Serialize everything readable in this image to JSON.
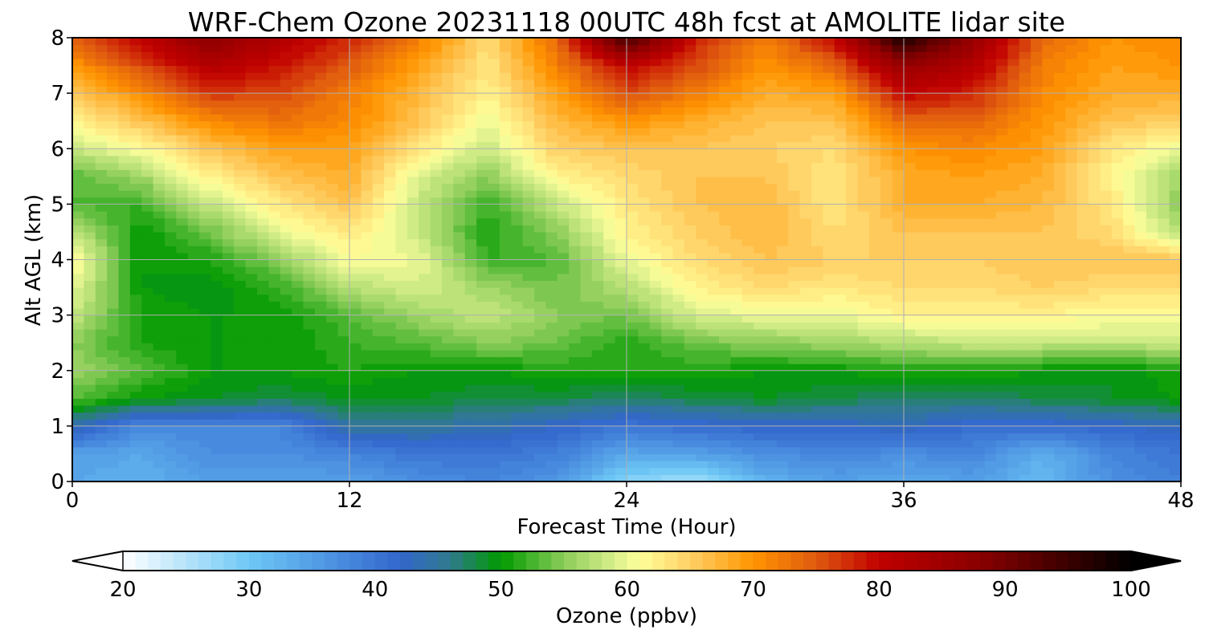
{
  "chart_data": {
    "type": "heatmap",
    "title": "WRF-Chem Ozone  20231118 00UTC 48h fcst at AMOLITE lidar site",
    "xlabel": "Forecast Time (Hour)",
    "ylabel": "Alt AGL (km)",
    "xlim": [
      0,
      48
    ],
    "ylim": [
      0,
      8
    ],
    "x_ticks": [
      "0",
      "12",
      "24",
      "36",
      "48"
    ],
    "y_ticks": [
      "0",
      "1",
      "2",
      "3",
      "4",
      "5",
      "6",
      "7",
      "8"
    ],
    "grid": true,
    "x": [
      0,
      3,
      6,
      9,
      12,
      15,
      18,
      21,
      24,
      27,
      30,
      33,
      36,
      39,
      42,
      45,
      48
    ],
    "y": [
      0,
      0.5,
      1,
      1.5,
      2,
      2.5,
      3,
      3.5,
      4,
      4.5,
      5,
      5.5,
      6,
      6.5,
      7,
      7.5,
      8
    ],
    "z": [
      [
        34,
        33,
        35,
        35,
        35,
        37,
        38,
        36,
        28,
        26,
        33,
        35,
        34,
        35,
        32,
        37,
        39
      ],
      [
        35,
        34,
        37,
        37,
        38,
        40,
        40,
        39,
        34,
        35,
        37,
        38,
        37,
        38,
        33,
        38,
        40
      ],
      [
        44,
        38,
        38,
        38,
        45,
        45,
        44,
        42,
        40,
        41,
        42,
        42,
        43,
        41,
        41,
        42,
        43
      ],
      [
        53,
        50,
        49,
        48,
        49,
        49,
        48,
        48,
        47,
        48,
        49,
        48,
        47,
        47,
        48,
        49,
        50
      ],
      [
        56,
        53,
        50,
        50,
        51,
        50,
        50,
        51,
        51,
        51,
        50,
        50,
        51,
        51,
        50,
        49,
        51
      ],
      [
        55,
        51,
        50,
        50,
        52,
        53,
        55,
        54,
        51,
        54,
        55,
        56,
        57,
        58,
        58,
        58,
        58
      ],
      [
        58,
        51,
        50,
        50,
        53,
        56,
        58,
        55,
        54,
        59,
        60,
        60,
        62,
        62,
        62,
        61,
        61
      ],
      [
        60,
        50,
        49,
        52,
        57,
        59,
        56,
        54,
        57,
        62,
        64,
        63,
        64,
        64,
        65,
        64,
        64
      ],
      [
        62,
        50,
        51,
        55,
        61,
        60,
        52,
        53,
        60,
        64,
        66,
        65,
        65,
        65,
        66,
        66,
        66
      ],
      [
        58,
        50,
        54,
        60,
        63,
        58,
        51,
        55,
        62,
        65,
        67,
        64,
        66,
        66,
        66,
        64,
        57
      ],
      [
        53,
        52,
        58,
        63,
        66,
        58,
        52,
        58,
        63,
        66,
        67,
        63,
        68,
        68,
        67,
        63,
        55
      ],
      [
        53,
        56,
        62,
        66,
        68,
        59,
        55,
        62,
        64,
        66,
        66,
        63,
        68,
        69,
        68,
        62,
        56
      ],
      [
        58,
        61,
        66,
        69,
        69,
        63,
        58,
        65,
        66,
        66,
        65,
        64,
        70,
        71,
        69,
        63,
        60
      ],
      [
        62,
        66,
        71,
        73,
        71,
        66,
        60,
        67,
        70,
        68,
        66,
        66,
        74,
        74,
        70,
        66,
        65
      ],
      [
        65,
        71,
        77,
        76,
        72,
        67,
        62,
        69,
        76,
        72,
        68,
        69,
        80,
        78,
        71,
        68,
        68
      ],
      [
        70,
        76,
        82,
        79,
        75,
        69,
        63,
        72,
        80,
        76,
        70,
        74,
        86,
        82,
        72,
        69,
        70
      ],
      [
        74,
        80,
        88,
        82,
        78,
        72,
        64,
        74,
        95,
        78,
        72,
        80,
        98,
        86,
        74,
        70,
        71
      ]
    ],
    "colorbar": {
      "label": "Ozone  (ppbv)",
      "min": 20,
      "max": 100,
      "step": 1,
      "extend": "both",
      "ticks": [
        "20",
        "30",
        "40",
        "50",
        "60",
        "70",
        "80",
        "90",
        "100"
      ],
      "color_stops": [
        [
          20,
          "#ffffff"
        ],
        [
          30,
          "#6ec8f5"
        ],
        [
          37,
          "#4a8fe0"
        ],
        [
          42,
          "#3366cc"
        ],
        [
          46,
          "#2f7a8c"
        ],
        [
          50,
          "#009a00"
        ],
        [
          55,
          "#8ccd5a"
        ],
        [
          59,
          "#d8ef8c"
        ],
        [
          61,
          "#ffff99"
        ],
        [
          65,
          "#ffd066"
        ],
        [
          70,
          "#ff9500"
        ],
        [
          75,
          "#e05a10"
        ],
        [
          80,
          "#c00000"
        ],
        [
          88,
          "#8a0000"
        ],
        [
          95,
          "#3a0000"
        ],
        [
          100,
          "#000000"
        ]
      ]
    }
  }
}
